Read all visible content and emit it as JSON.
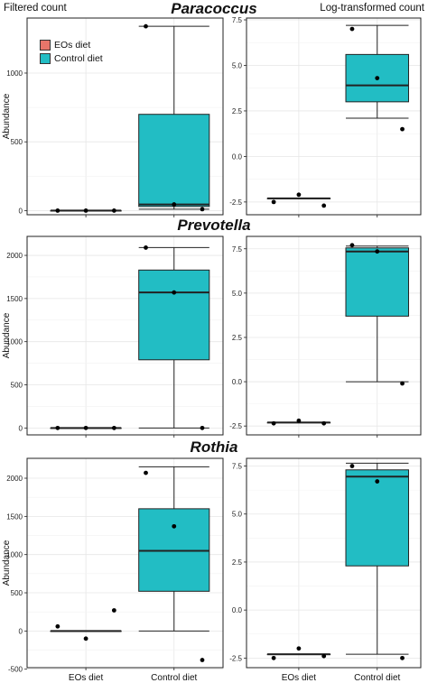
{
  "header": {
    "left_title": "Filtered count",
    "right_title": "Log-transformed count"
  },
  "legend": {
    "items": [
      {
        "label": "EOs diet",
        "color": "#e8756a"
      },
      {
        "label": "Control diet",
        "color": "#22bdc4"
      }
    ],
    "placement": "top-left (inside first panel)"
  },
  "colors": {
    "eos_box": "#e8756a",
    "control_box": "#22bdc4",
    "grid": "#e6e6e6",
    "box_outline": "#222222"
  },
  "chart_data": [
    {
      "type": "box",
      "taxon": "Paracoccus",
      "panel": "Filtered count",
      "ylabel": "Abundance",
      "ylim": [
        -30,
        1400
      ],
      "yticks": [
        0,
        500,
        1000
      ],
      "xlabel": "",
      "categories": [
        "EOs diet",
        "Control diet"
      ],
      "show_xticklabels": false,
      "grid": true,
      "groups": [
        {
          "name": "EOs diet",
          "color": "#e8756a",
          "min": 0,
          "q1": 0,
          "median": 0,
          "q3": 0,
          "max": 0,
          "points": [
            0,
            0,
            0
          ]
        },
        {
          "name": "Control diet",
          "color": "#22bdc4",
          "min": 10,
          "q1": 30,
          "median": 45,
          "q3": 700,
          "max": 1340,
          "points": [
            1340,
            45,
            10
          ]
        }
      ]
    },
    {
      "type": "box",
      "taxon": "Paracoccus",
      "panel": "Log-transformed count",
      "ylabel": "",
      "ylim": [
        -3.2,
        7.6
      ],
      "yticks": [
        -2.5,
        0.0,
        2.5,
        5.0,
        7.5
      ],
      "xlabel": "",
      "categories": [
        "EOs diet",
        "Control diet"
      ],
      "show_xticklabels": false,
      "grid": true,
      "groups": [
        {
          "name": "EOs diet",
          "color": "#e8756a",
          "min": -2.3,
          "q1": -2.3,
          "median": -2.3,
          "q3": -2.3,
          "max": -2.3,
          "points": [
            -2.5,
            -2.1,
            -2.7
          ]
        },
        {
          "name": "Control diet",
          "color": "#22bdc4",
          "min": 2.1,
          "q1": 3.0,
          "median": 3.9,
          "q3": 5.6,
          "max": 7.2,
          "points": [
            7.0,
            4.3,
            1.5
          ]
        }
      ]
    },
    {
      "type": "box",
      "taxon": "Prevotella",
      "panel": "Filtered count",
      "ylabel": "Abundance",
      "ylim": [
        -80,
        2220
      ],
      "yticks": [
        0,
        500,
        1000,
        1500,
        2000
      ],
      "xlabel": "",
      "categories": [
        "EOs diet",
        "Control diet"
      ],
      "show_xticklabels": false,
      "grid": true,
      "groups": [
        {
          "name": "EOs diet",
          "color": "#e8756a",
          "min": 0,
          "q1": 0,
          "median": 0,
          "q3": 0,
          "max": 0,
          "points": [
            0,
            0,
            0
          ]
        },
        {
          "name": "Control diet",
          "color": "#22bdc4",
          "min": 0,
          "q1": 790,
          "median": 1570,
          "q3": 1830,
          "max": 2090,
          "points": [
            2090,
            1570,
            0
          ]
        }
      ]
    },
    {
      "type": "box",
      "taxon": "Prevotella",
      "panel": "Log-transformed count",
      "ylabel": "",
      "ylim": [
        -3.0,
        8.2
      ],
      "yticks": [
        -2.5,
        0.0,
        2.5,
        5.0,
        7.5
      ],
      "xlabel": "",
      "categories": [
        "EOs diet",
        "Control diet"
      ],
      "show_xticklabels": false,
      "grid": true,
      "groups": [
        {
          "name": "EOs diet",
          "color": "#e8756a",
          "min": -2.3,
          "q1": -2.3,
          "median": -2.3,
          "q3": -2.3,
          "max": -2.3,
          "points": [
            -2.35,
            -2.2,
            -2.35
          ]
        },
        {
          "name": "Control diet",
          "color": "#22bdc4",
          "min": 0.0,
          "q1": 3.7,
          "median": 7.35,
          "q3": 7.55,
          "max": 7.65,
          "points": [
            7.7,
            7.35,
            -0.1
          ]
        }
      ]
    },
    {
      "type": "box",
      "taxon": "Rothia",
      "panel": "Filtered count",
      "ylabel": "Abundance",
      "ylim": [
        -480,
        2260
      ],
      "yticks": [
        -500,
        0,
        500,
        1000,
        1500,
        2000
      ],
      "xlabel": "",
      "categories": [
        "EOs diet",
        "Control diet"
      ],
      "show_xticklabels": true,
      "grid": true,
      "groups": [
        {
          "name": "EOs diet",
          "color": "#e8756a",
          "min": 0,
          "q1": 0,
          "median": 0,
          "q3": 0,
          "max": 0,
          "points": [
            60,
            -100,
            270
          ]
        },
        {
          "name": "Control diet",
          "color": "#22bdc4",
          "min": 0,
          "q1": 520,
          "median": 1050,
          "q3": 1600,
          "max": 2150,
          "points": [
            2070,
            1370,
            -380
          ]
        }
      ]
    },
    {
      "type": "box",
      "taxon": "Rothia",
      "panel": "Log-transformed count",
      "ylabel": "",
      "ylim": [
        -3.0,
        7.9
      ],
      "yticks": [
        -2.5,
        0.0,
        2.5,
        5.0,
        7.5
      ],
      "xlabel": "",
      "categories": [
        "EOs diet",
        "Control diet"
      ],
      "show_xticklabels": true,
      "grid": true,
      "groups": [
        {
          "name": "EOs diet",
          "color": "#e8756a",
          "min": -2.3,
          "q1": -2.3,
          "median": -2.3,
          "q3": -2.3,
          "max": -2.3,
          "points": [
            -2.5,
            -2.0,
            -2.4
          ]
        },
        {
          "name": "Control diet",
          "color": "#22bdc4",
          "min": -2.3,
          "q1": 2.3,
          "median": 6.95,
          "q3": 7.3,
          "max": 7.65,
          "points": [
            7.5,
            6.7,
            -2.5
          ]
        }
      ]
    }
  ],
  "taxa_titles": [
    "Paracoccus",
    "Prevotella",
    "Rothia"
  ]
}
